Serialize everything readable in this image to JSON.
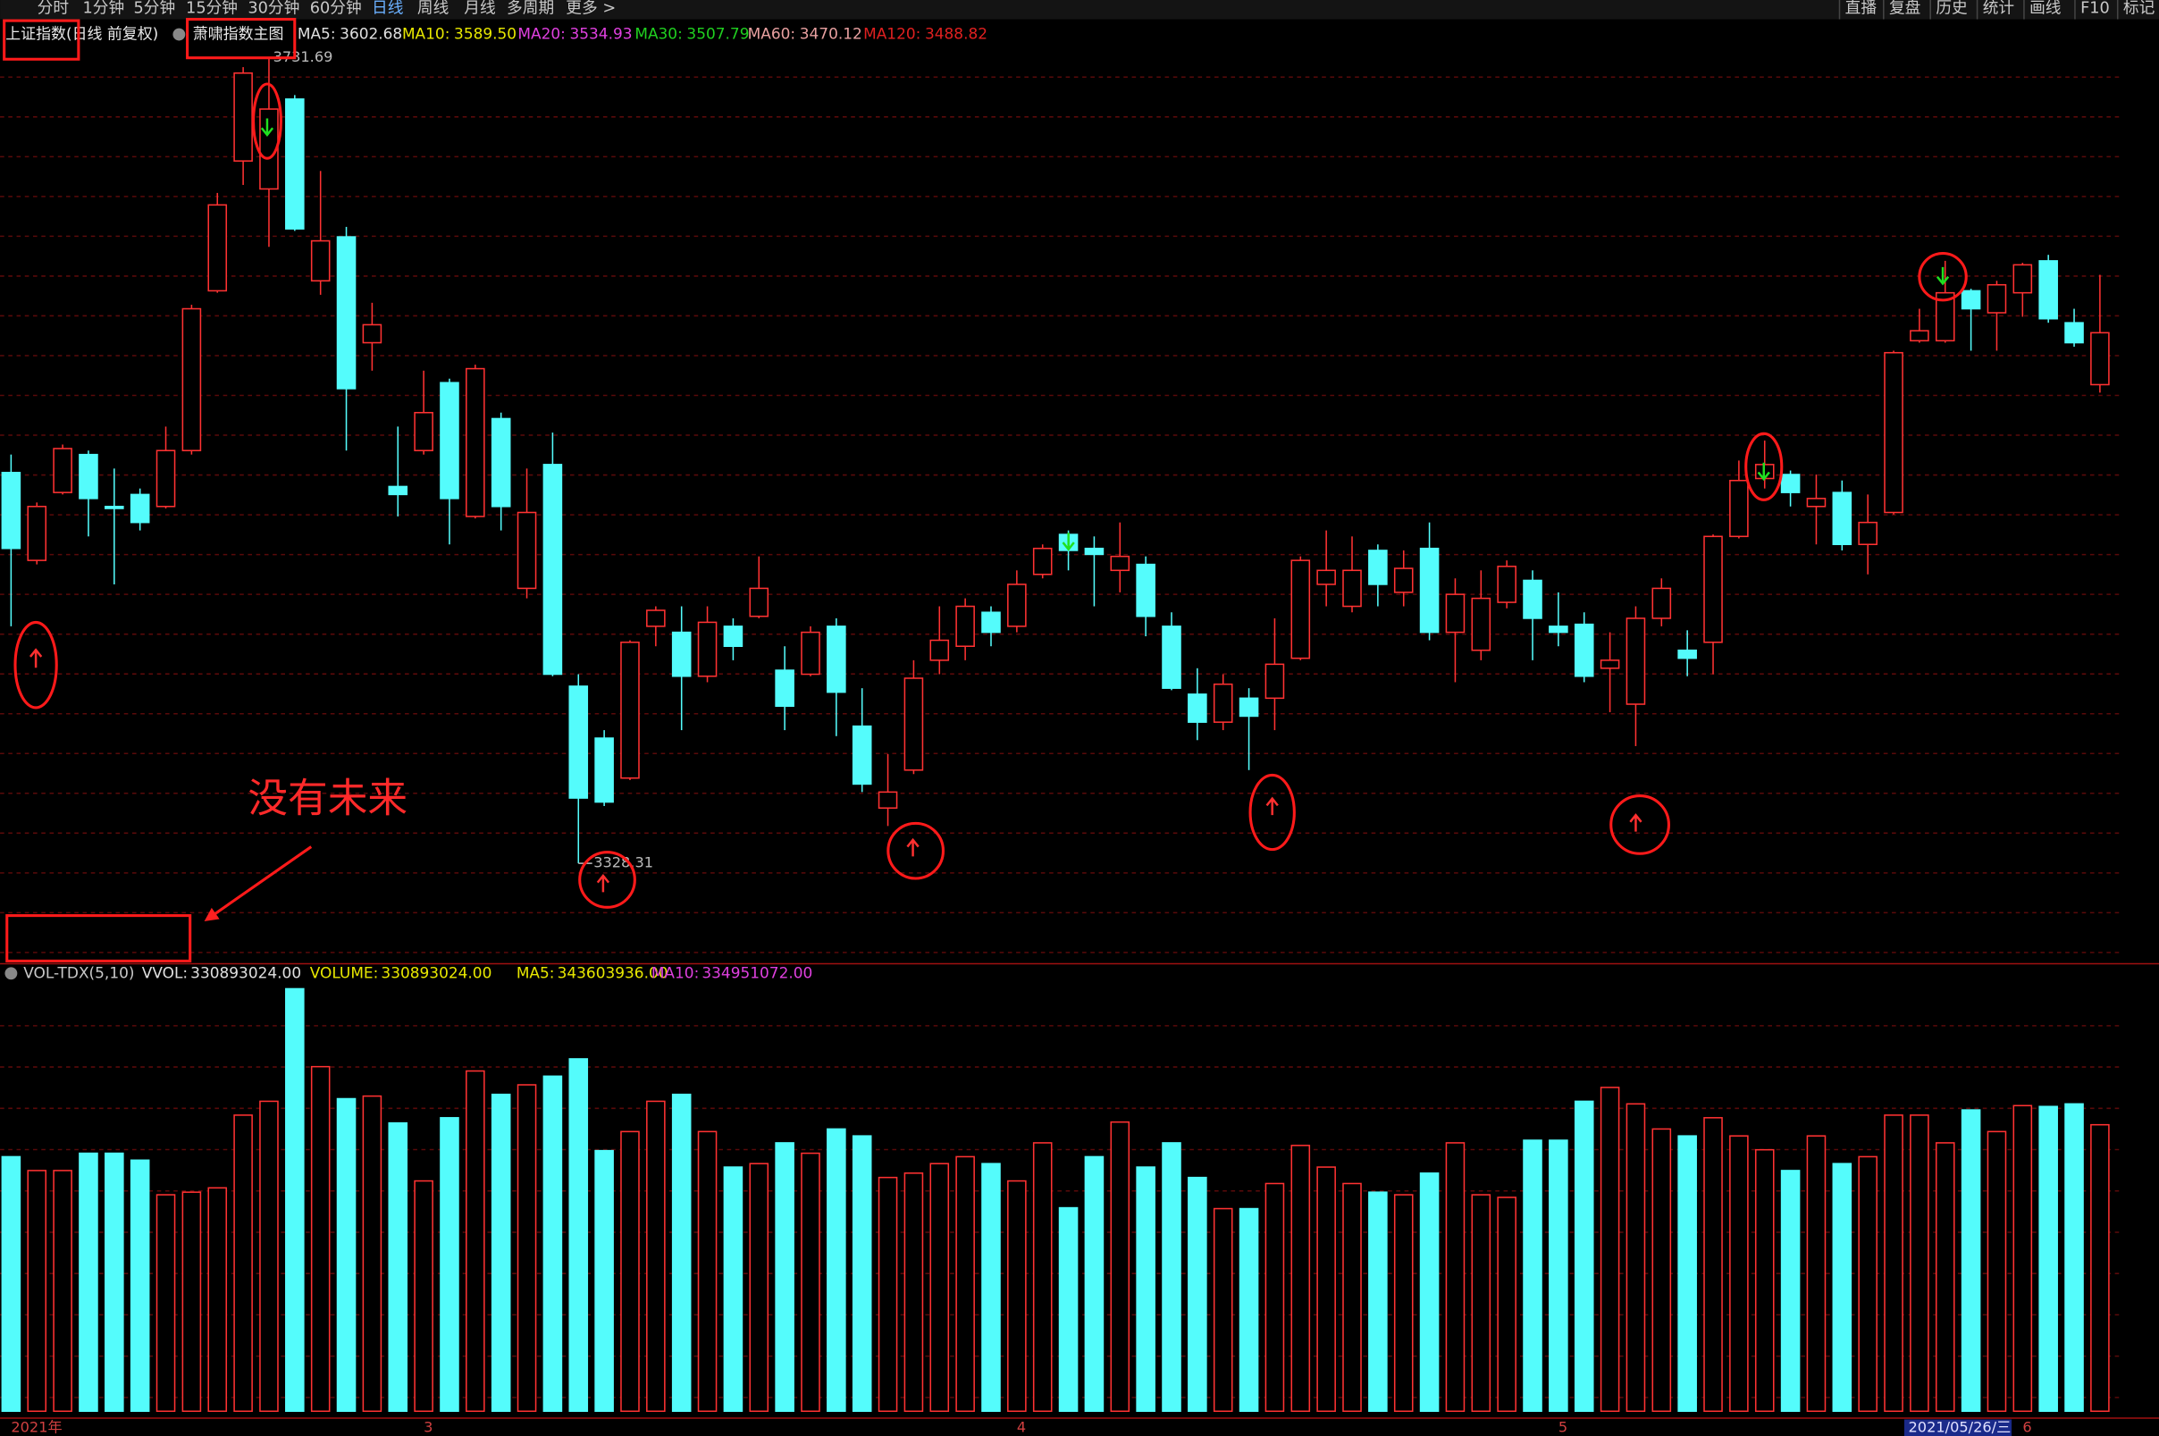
{
  "toolbar": {
    "left": [
      "分时",
      "1分钟",
      "5分钟",
      "15分钟",
      "30分钟",
      "60分钟",
      "日线",
      "周线",
      "月线",
      "多周期",
      "更多 >"
    ],
    "right": [
      "直播",
      "复盘",
      "历史",
      "统计",
      "画线",
      "F10",
      "标记"
    ]
  },
  "header": {
    "symbol": "上证指数(日线 前复权)",
    "indicator": "萧啸指数主图",
    "ma": [
      {
        "name": "MA5:",
        "value": "3602.68",
        "color": "#e0e0e0"
      },
      {
        "name": "MA10:",
        "value": "3589.50",
        "color": "#e8e800"
      },
      {
        "name": "MA20:",
        "value": "3534.93",
        "color": "#e040e0"
      },
      {
        "name": "MA30:",
        "value": "3507.79",
        "color": "#20d020"
      },
      {
        "name": "MA60:",
        "value": "3470.12",
        "color": "#e8a0a0"
      },
      {
        "name": "MA120:",
        "value": "3488.82",
        "color": "#e02020"
      }
    ]
  },
  "volume_header": {
    "indicator": "VOL-TDX(5,10)",
    "items": [
      {
        "name": "VVOL:",
        "value": "330893024.00",
        "color": "#e0e0e0"
      },
      {
        "name": "VOLUME:",
        "value": "330893024.00",
        "color": "#e8e800"
      },
      {
        "name": "MA5:",
        "value": "343603936.00",
        "color": "#e8e800"
      },
      {
        "name": "MA10:",
        "value": "334951072.00",
        "color": "#e040e0"
      }
    ]
  },
  "annotation": "没有未来",
  "cursor_label": "2021/05/26/三",
  "chart_data": [
    {
      "type": "candlestick",
      "up_color": "#ff3232",
      "down_color": "#54fcfc",
      "ylim": [
        3279.4,
        3748.2
      ],
      "x": [
        "2021年",
        null,
        null,
        null,
        null,
        null,
        null,
        null,
        null,
        null,
        null,
        null,
        null,
        null,
        null,
        null,
        "3",
        null,
        null,
        null,
        null,
        null,
        null,
        null,
        null,
        null,
        null,
        null,
        null,
        null,
        null,
        null,
        null,
        null,
        null,
        null,
        null,
        null,
        null,
        "4",
        null,
        null,
        null,
        null,
        null,
        null,
        null,
        null,
        null,
        null,
        null,
        null,
        null,
        null,
        null,
        null,
        null,
        null,
        null,
        null,
        "5",
        null,
        null,
        null,
        null,
        null,
        null,
        null,
        null,
        null,
        null,
        null,
        null,
        null,
        null,
        null,
        null,
        null,
        "6",
        null,
        null,
        null
      ],
      "open": [
        3524,
        3480,
        3514,
        3533,
        3507,
        3513,
        3507,
        3535,
        3615,
        3680,
        3666,
        3711,
        3620,
        3642,
        3589,
        3517,
        3535,
        3569,
        3502,
        3551,
        3466,
        3528,
        3417,
        3391,
        3371,
        3447,
        3444,
        3422,
        3447,
        3452,
        3425,
        3423,
        3447,
        3397,
        3356,
        3375,
        3430,
        3437,
        3454,
        3447,
        3473,
        3493,
        3486,
        3475,
        3478,
        3447,
        3413,
        3399,
        3411,
        3411,
        3431,
        3468,
        3457,
        3485,
        3464,
        3486,
        3444,
        3435,
        3459,
        3470,
        3447,
        3448,
        3426,
        3408,
        3451,
        3435,
        3439,
        3492,
        3521,
        3523,
        3507,
        3514,
        3488,
        3504,
        3590,
        3590,
        3615,
        3604,
        3614,
        3630,
        3599,
        3568
      ],
      "high": [
        3533,
        3509,
        3538,
        3535,
        3526,
        3516,
        3547,
        3608,
        3664,
        3727,
        3731.69,
        3713,
        3675,
        3647,
        3609,
        3547,
        3575,
        3571,
        3578,
        3554,
        3526,
        3544,
        3423,
        3395,
        3440,
        3457,
        3457,
        3457,
        3451,
        3482,
        3437,
        3447,
        3451,
        3416,
        3383,
        3430,
        3457,
        3461,
        3457,
        3475,
        3488,
        3495,
        3492,
        3499,
        3482,
        3454,
        3426,
        3423,
        3416,
        3451,
        3482,
        3495,
        3492,
        3488,
        3485,
        3499,
        3471,
        3475,
        3480,
        3475,
        3464,
        3454,
        3444,
        3457,
        3471,
        3445,
        3493,
        3530,
        3540,
        3525,
        3523,
        3520,
        3513,
        3585,
        3606,
        3630,
        3616,
        3620,
        3629,
        3633,
        3606,
        3623
      ],
      "low": [
        3447,
        3478,
        3513,
        3492,
        3468,
        3495,
        3506,
        3533,
        3614,
        3668,
        3637,
        3645,
        3613,
        3535,
        3575,
        3502,
        3533,
        3488,
        3501,
        3495,
        3461,
        3422,
        3328.31,
        3357,
        3370,
        3437,
        3395,
        3419,
        3430,
        3451,
        3395,
        3422,
        3392,
        3364,
        3347,
        3373,
        3423,
        3430,
        3437,
        3444,
        3471,
        3475,
        3457,
        3464,
        3442,
        3415,
        3390,
        3395,
        3375,
        3395,
        3430,
        3457,
        3454,
        3457,
        3457,
        3440,
        3419,
        3430,
        3456,
        3430,
        3437,
        3419,
        3404,
        3387,
        3447,
        3422,
        3423,
        3491,
        3516,
        3507,
        3488,
        3485,
        3473,
        3503,
        3589,
        3589,
        3585,
        3585,
        3602,
        3599,
        3587,
        3564
      ],
      "close": [
        3486,
        3507,
        3536,
        3511,
        3506,
        3499,
        3535,
        3606,
        3658,
        3724,
        3706,
        3646,
        3640,
        3566,
        3598,
        3513,
        3554,
        3511,
        3576,
        3507,
        3504,
        3423,
        3361,
        3359,
        3439,
        3455,
        3422,
        3449,
        3437,
        3466,
        3407,
        3444,
        3414,
        3368,
        3364,
        3421,
        3440,
        3457,
        3444,
        3468,
        3486,
        3485,
        3483,
        3482,
        3452,
        3416,
        3399,
        3418,
        3402,
        3428,
        3480,
        3475,
        3475,
        3468,
        3476,
        3444,
        3463,
        3461,
        3477,
        3451,
        3444,
        3422,
        3430,
        3451,
        3466,
        3431,
        3492,
        3520,
        3528,
        3514,
        3511,
        3488,
        3499,
        3584,
        3595,
        3614,
        3606,
        3618,
        3628,
        3601,
        3589,
        3594
      ]
    },
    {
      "type": "bar",
      "ylim": [
        0,
        493000000
      ],
      "values": [
        294000000,
        278000000,
        278000000,
        298000000,
        298000000,
        290000000,
        250000000,
        253000000,
        258000000,
        342000000,
        358000000,
        488000000,
        398000000,
        361000000,
        364000000,
        333000000,
        266000000,
        339000000,
        393000000,
        366000000,
        377000000,
        387000000,
        407000000,
        301000000,
        323000000,
        358000000,
        366000000,
        323000000,
        282000000,
        286000000,
        310000000,
        298000000,
        326000000,
        318000000,
        270000000,
        275000000,
        286000000,
        294000000,
        286000000,
        266000000,
        310000000,
        235000000,
        294000000,
        334000000,
        282000000,
        310000000,
        270000000,
        234000000,
        234000000,
        263000000,
        307000000,
        282000000,
        263000000,
        253000000,
        250000000,
        275000000,
        310000000,
        250000000,
        247000000,
        313000000,
        313000000,
        358000000,
        374000000,
        355000000,
        326000000,
        318000000,
        339000000,
        318000000,
        302000000,
        278000000,
        318000000,
        286000000,
        294000000,
        342000000,
        342000000,
        310000000,
        348000000,
        323000000,
        353000000,
        352000000,
        355000000,
        330893024
      ]
    }
  ]
}
